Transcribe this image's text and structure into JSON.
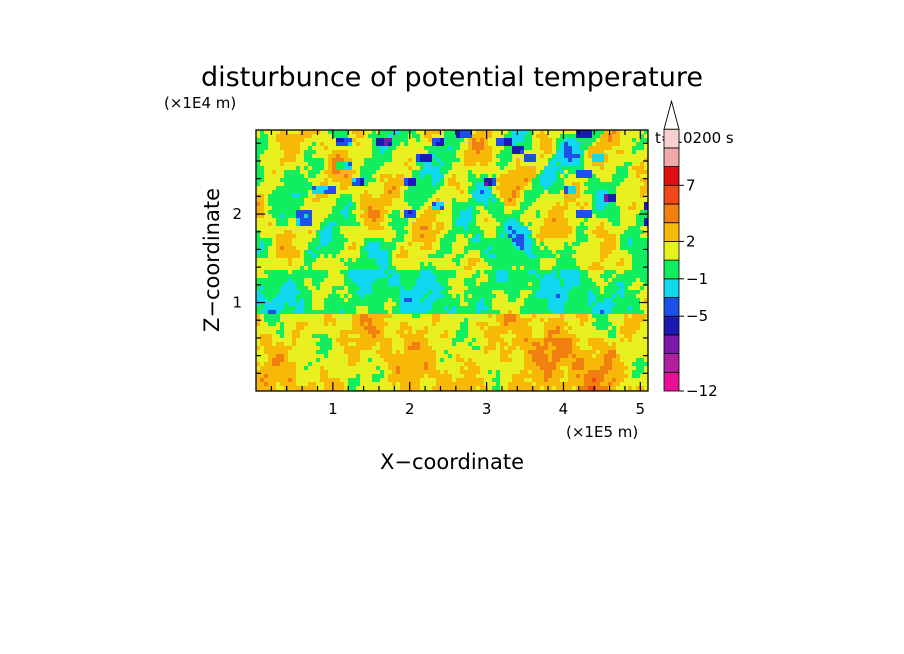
{
  "chart_data": {
    "type": "heatmap",
    "title": "disturbunce of potential temperature",
    "time_label": "t=10200 s",
    "xlabel": "X−coordinate",
    "ylabel": "Z−coordinate",
    "x_scale_label": "(×1E5 m)",
    "y_scale_label": "(×1E4 m)",
    "xlim": [
      0,
      5.1
    ],
    "ylim": [
      0,
      2.95
    ],
    "x_ticks": [
      {
        "value": 1,
        "label": "1"
      },
      {
        "value": 2,
        "label": "2"
      },
      {
        "value": 3,
        "label": "3"
      },
      {
        "value": 4,
        "label": "4"
      },
      {
        "value": 5,
        "label": "5"
      }
    ],
    "y_ticks": [
      {
        "value": 1,
        "label": "1"
      },
      {
        "value": 2,
        "label": "2"
      }
    ],
    "colorbar": {
      "colors": [
        "#e8109a",
        "#b0209e",
        "#7a1aa8",
        "#1a1ab0",
        "#1e50e8",
        "#10d8f0",
        "#10ee60",
        "#e8f020",
        "#f8b808",
        "#f08010",
        "#f04818",
        "#e01010",
        "#f0a8a8",
        "#f8d0d0"
      ],
      "tick_labels": [
        {
          "boundary": 0,
          "label": "−12"
        },
        {
          "boundary": 4,
          "label": "−5"
        },
        {
          "boundary": 6,
          "label": "−1"
        },
        {
          "boundary": 8,
          "label": "2"
        },
        {
          "boundary": 11,
          "label": "7"
        }
      ],
      "extend_top": true
    },
    "field_description": "banded field: mostly yellow/orange (0 to 4) near the surface below z=1, green (-1 to 0) band around z=1, mixed orange/yellow/green with cyan and blue streaks above z=1.5, wave-like fans spreading from x=2.2 and x=4.3"
  }
}
